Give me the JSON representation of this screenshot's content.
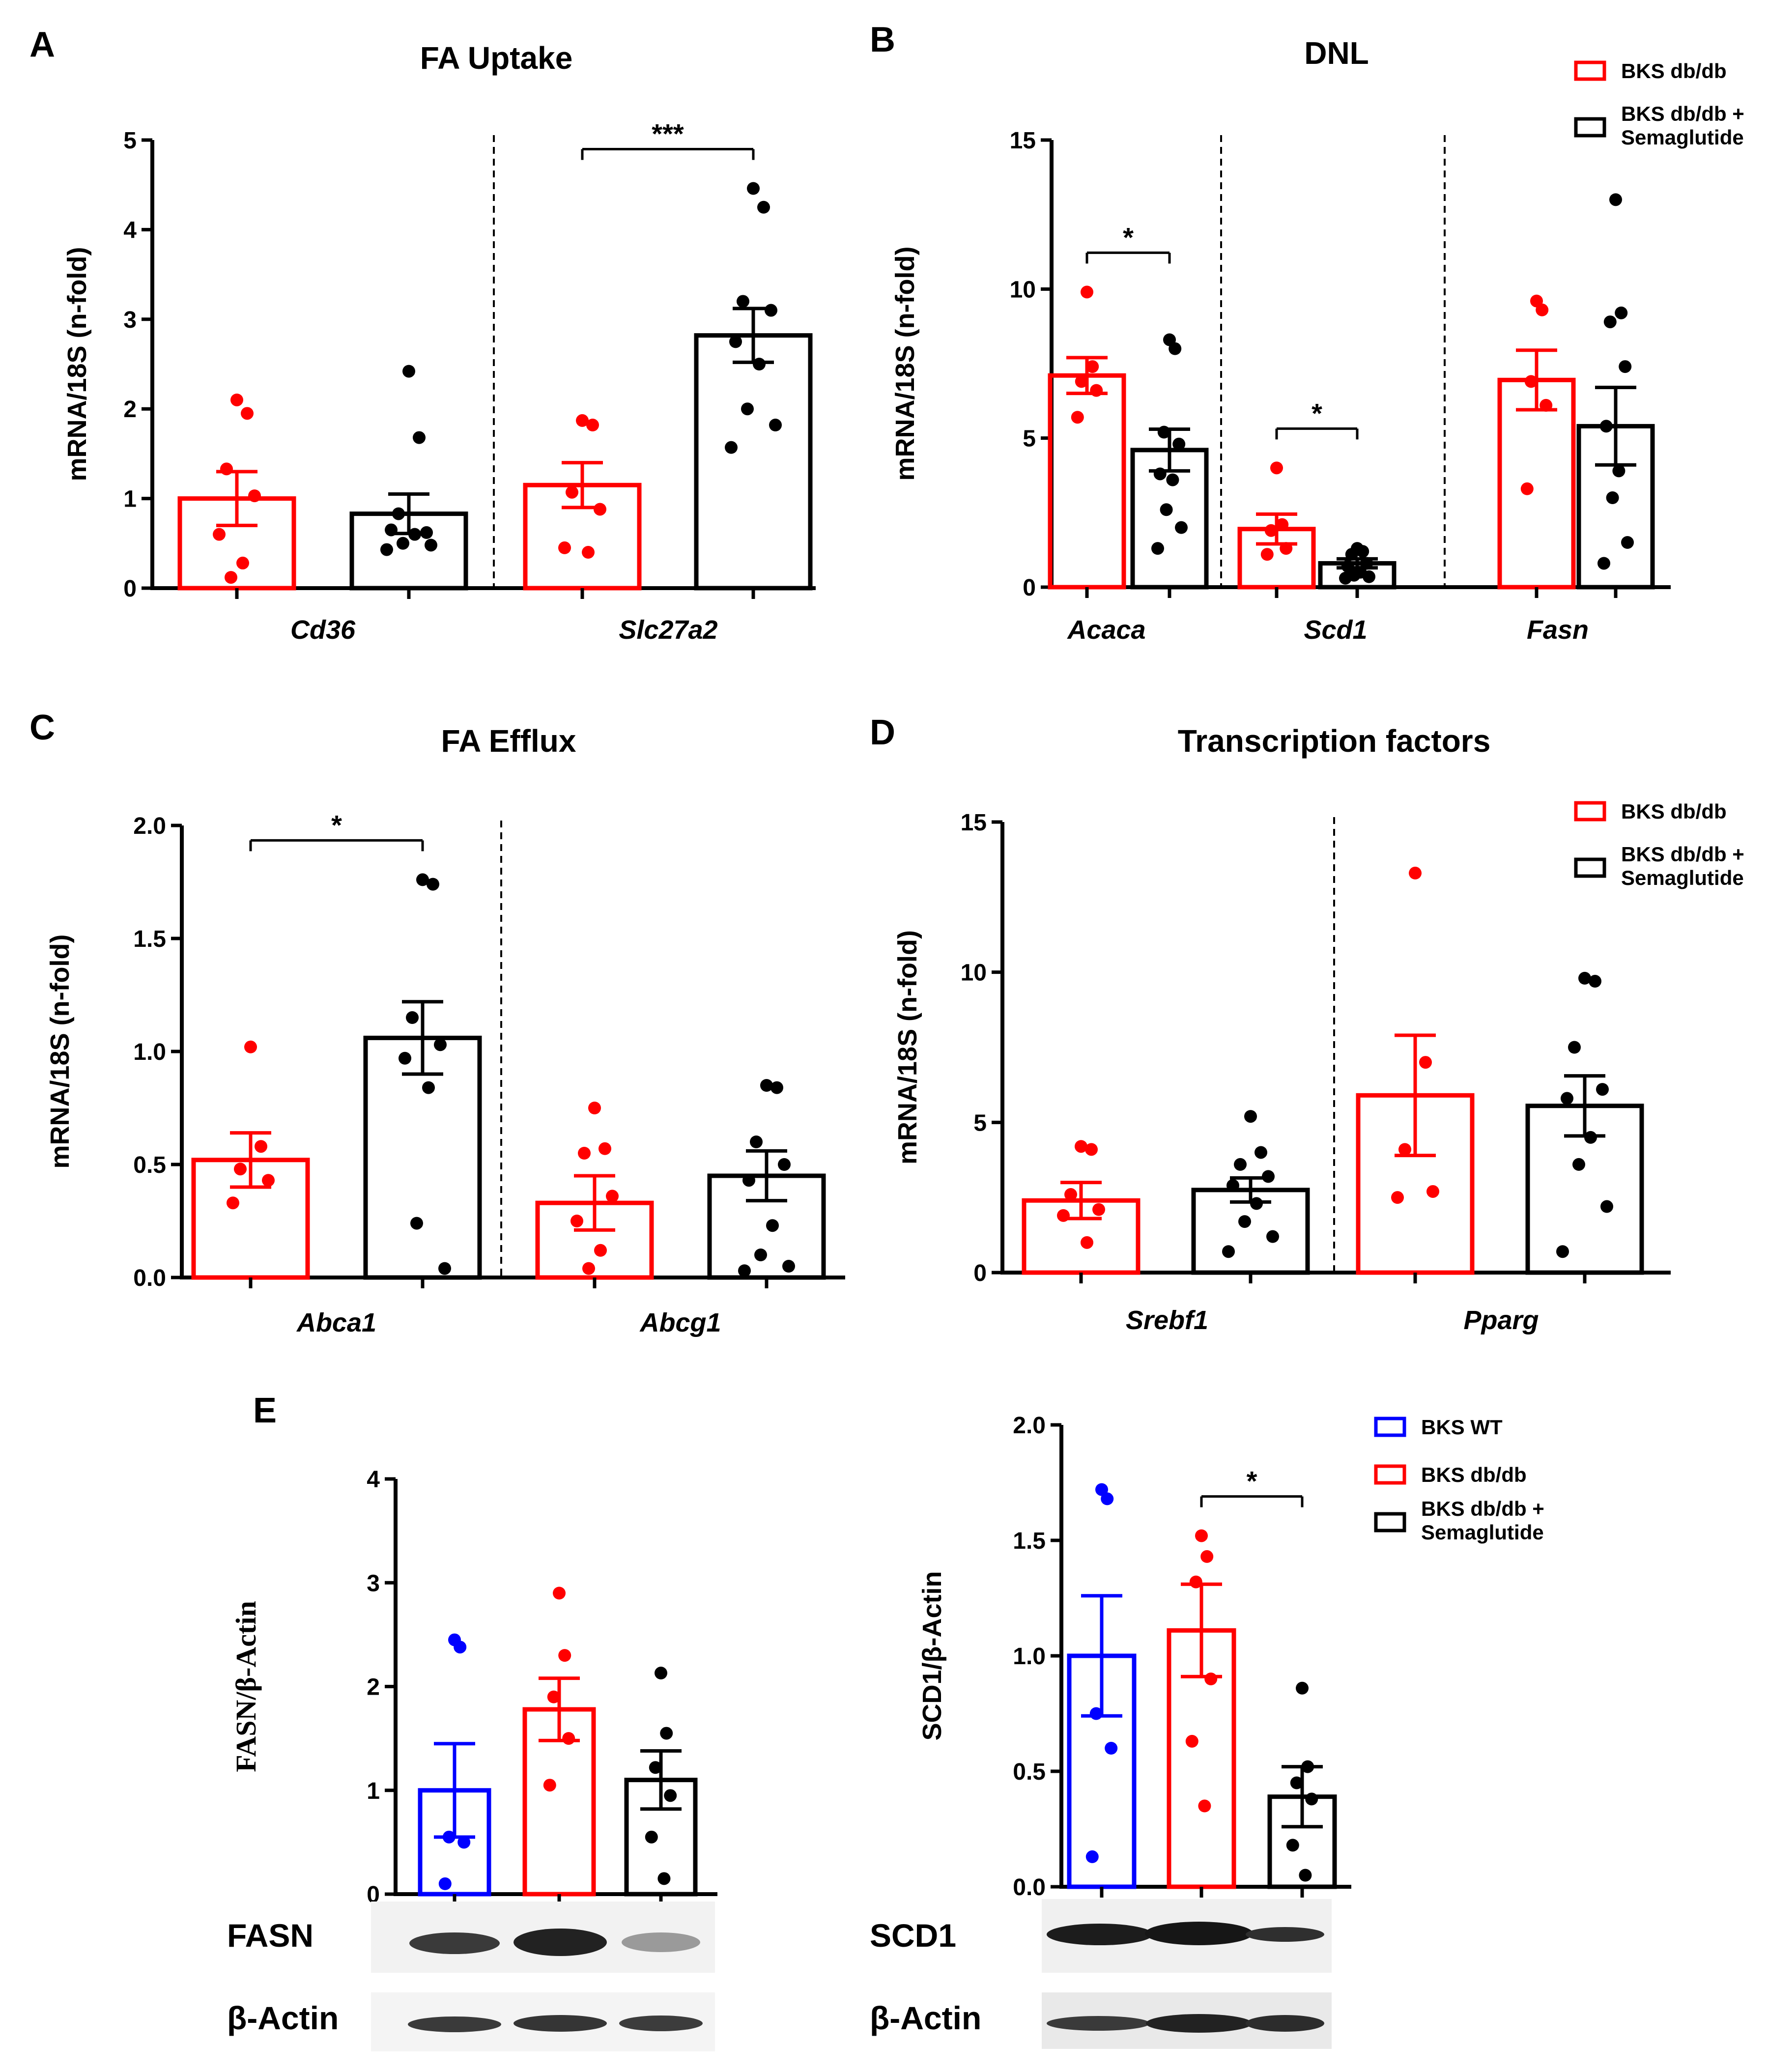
{
  "legend_two": [
    {
      "label": "BKS db/db",
      "color": "#ff0000"
    },
    {
      "label": "BKS db/db +",
      "label2": "Semaglutide",
      "color": "#000000"
    }
  ],
  "legend_three": [
    {
      "label": "BKS WT",
      "color": "#0000ff"
    },
    {
      "label": "BKS db/db",
      "color": "#ff0000"
    },
    {
      "label": "BKS db/db +",
      "label2": "Semaglutide",
      "color": "#000000"
    }
  ],
  "blots": {
    "left": {
      "protein": "FASN",
      "control": "β-Actin"
    },
    "right": {
      "protein": "SCD1",
      "control": "β-Actin"
    }
  },
  "chart_data": [
    {
      "id": "A",
      "letter": "A",
      "type": "bar",
      "title": "FA Uptake",
      "ylabel": "mRNA/18S (n-fold)",
      "ylim": [
        0,
        5
      ],
      "yticks": [
        "0",
        "1",
        "2",
        "3",
        "4",
        "5"
      ],
      "categories": [
        "Cd36",
        "Slc27a2"
      ],
      "series": [
        {
          "name": "BKS db/db",
          "color": "#ff0000",
          "values": [
            1.0,
            1.15
          ],
          "sem": [
            0.3,
            0.25
          ],
          "points": [
            [
              2.1,
              1.95,
              1.33,
              1.03,
              0.6,
              0.28,
              0.12
            ],
            [
              1.87,
              1.82,
              1.07,
              0.88,
              0.45,
              0.4
            ]
          ]
        },
        {
          "name": "BKS db/db + Semaglutide",
          "color": "#000000",
          "values": [
            0.83,
            2.82
          ],
          "sem": [
            0.22,
            0.3
          ],
          "points": [
            [
              2.42,
              1.68,
              0.83,
              0.62,
              0.65,
              0.6,
              0.5,
              0.48,
              0.43
            ],
            [
              4.46,
              4.25,
              3.2,
              3.1,
              2.75,
              2.5,
              2.0,
              1.82,
              1.57
            ]
          ]
        }
      ],
      "significance": [
        {
          "category": 1,
          "label": "***"
        }
      ]
    },
    {
      "id": "B",
      "letter": "B",
      "type": "bar",
      "title": "DNL",
      "ylabel": "mRNA/18S (n-fold)",
      "ylim": [
        0,
        15
      ],
      "yticks": [
        "0",
        "5",
        "10",
        "15"
      ],
      "categories": [
        "Acaca",
        "Scd1",
        "Fasn"
      ],
      "series": [
        {
          "name": "BKS db/db",
          "color": "#ff0000",
          "values": [
            7.1,
            1.95,
            6.95
          ],
          "sem": [
            0.6,
            0.5,
            1.0
          ],
          "points": [
            [
              9.9,
              7.4,
              6.9,
              6.6,
              5.7
            ],
            [
              4.0,
              2.1,
              1.9,
              1.3,
              1.1
            ],
            [
              9.6,
              9.3,
              6.9,
              6.1,
              3.3
            ]
          ]
        },
        {
          "name": "BKS db/db + Semaglutide",
          "color": "#000000",
          "values": [
            4.6,
            0.8,
            5.4
          ],
          "sem": [
            0.7,
            0.15,
            1.3
          ],
          "points": [
            [
              8.3,
              8.0,
              5.2,
              4.8,
              3.8,
              3.6,
              2.6,
              2.0,
              1.3
            ],
            [
              1.3,
              1.2,
              1.1,
              0.8,
              0.7,
              0.5,
              0.4,
              0.35,
              0.3
            ],
            [
              13.0,
              9.2,
              8.9,
              7.4,
              5.4,
              3.9,
              3.0,
              1.5,
              0.8
            ]
          ]
        }
      ],
      "significance": [
        {
          "category": 0,
          "label": "*"
        },
        {
          "category": 1,
          "label": "*"
        }
      ]
    },
    {
      "id": "C",
      "letter": "C",
      "type": "bar",
      "title": "FA Efflux",
      "ylabel": "mRNA/18S (n-fold)",
      "ylim": [
        0,
        2.0
      ],
      "yticks": [
        "0.0",
        "0.5",
        "1.0",
        "1.5",
        "2.0"
      ],
      "categories": [
        "Abca1",
        "Abcg1"
      ],
      "series": [
        {
          "name": "BKS db/db",
          "color": "#ff0000",
          "values": [
            0.52,
            0.33
          ],
          "sem": [
            0.12,
            0.12
          ],
          "points": [
            [
              1.02,
              0.58,
              0.48,
              0.43,
              0.33
            ],
            [
              0.75,
              0.57,
              0.55,
              0.36,
              0.25,
              0.12,
              0.04
            ]
          ]
        },
        {
          "name": "BKS db/db + Semaglutide",
          "color": "#000000",
          "values": [
            1.06,
            0.45
          ],
          "sem": [
            0.16,
            0.11
          ],
          "points": [
            [
              1.76,
              1.74,
              1.15,
              1.03,
              0.97,
              0.84,
              0.24,
              0.04
            ],
            [
              0.85,
              0.84,
              0.6,
              0.5,
              0.43,
              0.23,
              0.1,
              0.05,
              0.03
            ]
          ]
        }
      ],
      "significance": [
        {
          "category": 0,
          "label": "*"
        }
      ]
    },
    {
      "id": "D",
      "letter": "D",
      "type": "bar",
      "title": "Transcription factors",
      "ylabel": "mRNA/18S (n-fold)",
      "ylim": [
        0,
        15
      ],
      "yticks": [
        "0",
        "5",
        "10",
        "15"
      ],
      "categories": [
        "Srebf1",
        "Pparg"
      ],
      "series": [
        {
          "name": "BKS db/db",
          "color": "#ff0000",
          "values": [
            2.4,
            5.9
          ],
          "sem": [
            0.6,
            2.0
          ],
          "points": [
            [
              4.2,
              4.1,
              2.6,
              2.1,
              1.9,
              1.0
            ],
            [
              13.3,
              7.0,
              4.1,
              2.7,
              2.5
            ]
          ]
        },
        {
          "name": "BKS db/db + Semaglutide",
          "color": "#000000",
          "values": [
            2.75,
            5.55
          ],
          "sem": [
            0.4,
            1.0
          ],
          "points": [
            [
              5.2,
              4.0,
              3.6,
              3.2,
              2.9,
              2.3,
              1.7,
              1.2,
              0.7
            ],
            [
              9.8,
              9.7,
              7.5,
              6.1,
              5.8,
              4.5,
              3.6,
              2.2,
              0.7
            ]
          ]
        }
      ],
      "significance": []
    },
    {
      "id": "E1",
      "letter": "E",
      "type": "bar",
      "title": "",
      "ylabel": "FASN/β-Actin",
      "ylim": [
        0,
        4
      ],
      "yticks": [
        "0",
        "1",
        "2",
        "3",
        "4"
      ],
      "categories": [
        "BKS WT",
        "BKS db/db",
        "BKS db/db + Semaglutide"
      ],
      "values": [
        1.0,
        1.78,
        1.1
      ],
      "sem": [
        0.45,
        0.3,
        0.28
      ],
      "colors": [
        "#0000ff",
        "#ff0000",
        "#000000"
      ],
      "points": [
        [
          2.45,
          2.38,
          0.55,
          0.5,
          0.1
        ],
        [
          2.9,
          2.3,
          1.9,
          1.5,
          1.05
        ],
        [
          2.13,
          1.55,
          1.22,
          0.95,
          0.55,
          0.15
        ]
      ]
    },
    {
      "id": "E2",
      "letter": "",
      "type": "bar",
      "title": "",
      "ylabel": "SCD1/β-Actin",
      "ylim": [
        0,
        2.0
      ],
      "yticks": [
        "0.0",
        "0.5",
        "1.0",
        "1.5",
        "2.0"
      ],
      "categories": [
        "BKS WT",
        "BKS db/db",
        "BKS db/db + Semaglutide"
      ],
      "values": [
        1.0,
        1.11,
        0.39
      ],
      "sem": [
        0.26,
        0.2,
        0.13
      ],
      "colors": [
        "#0000ff",
        "#ff0000",
        "#000000"
      ],
      "points": [
        [
          1.72,
          1.68,
          0.75,
          0.6,
          0.13
        ],
        [
          1.52,
          1.43,
          1.32,
          0.9,
          0.63,
          0.35
        ],
        [
          0.86,
          0.52,
          0.45,
          0.38,
          0.18,
          0.05
        ]
      ],
      "significance": [
        {
          "from": 1,
          "to": 2,
          "label": "*"
        }
      ]
    }
  ]
}
